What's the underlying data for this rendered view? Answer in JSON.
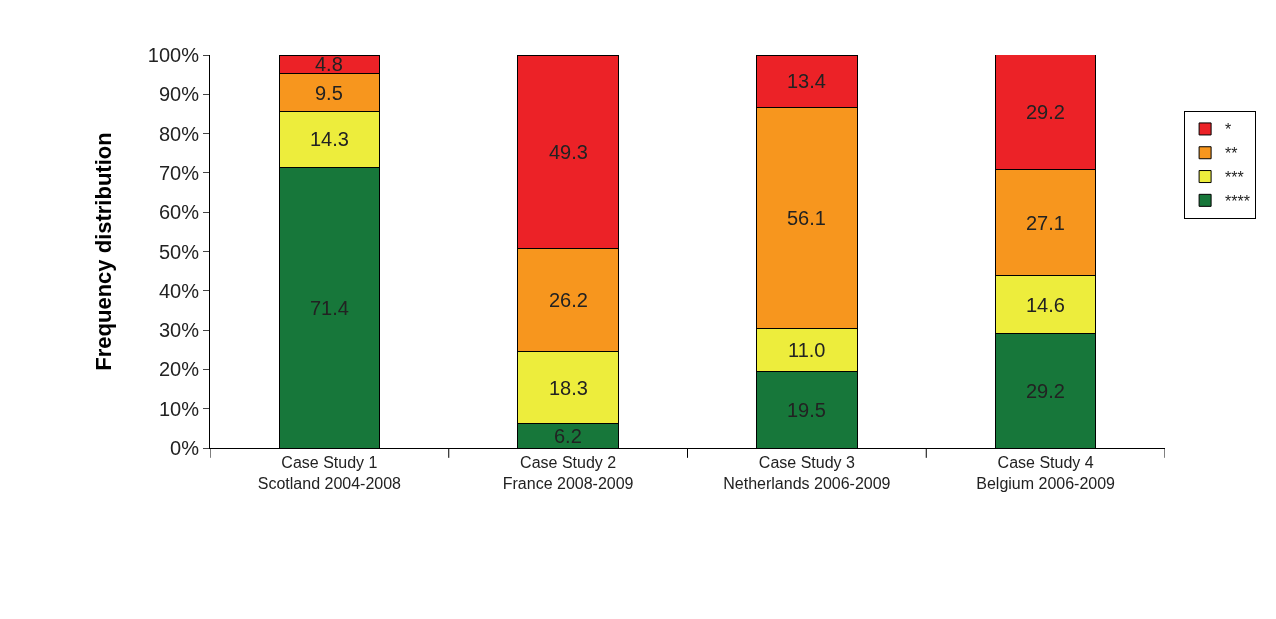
{
  "chart_data": {
    "type": "bar",
    "stacked": true,
    "ylabel": "Frequency distribution",
    "categories": [
      "Case Study 1\nScotland 2004-2008",
      "Case Study 2\nFrance 2008-2009",
      "Case Study 3\nNetherlands 2006-2009",
      "Case Study 4\nBelgium 2006-2009"
    ],
    "series": [
      {
        "name": "****",
        "color": "#17773a",
        "values": [
          71.4,
          6.2,
          19.5,
          29.2
        ],
        "value_labels": [
          "71.4",
          "6.2",
          "19.5",
          "29.2"
        ]
      },
      {
        "name": "***",
        "color": "#eded3c",
        "values": [
          14.3,
          18.3,
          11.0,
          14.6
        ],
        "value_labels": [
          "14.3",
          "18.3",
          "11.0",
          "14.6"
        ]
      },
      {
        "name": "**",
        "color": "#f7961e",
        "values": [
          9.5,
          26.2,
          56.1,
          27.1
        ],
        "value_labels": [
          "9.5",
          "26.2",
          "56.1",
          "27.1"
        ]
      },
      {
        "name": "*",
        "color": "#ec2227",
        "values": [
          4.8,
          49.3,
          13.4,
          29.2
        ],
        "value_labels": [
          "4.8",
          "49.3",
          "13.4",
          "29.2"
        ]
      }
    ],
    "ylim": [
      0,
      100
    ],
    "yticks": [
      {
        "value": 0,
        "label": "0%"
      },
      {
        "value": 10,
        "label": "10%"
      },
      {
        "value": 20,
        "label": "20%"
      },
      {
        "value": 30,
        "label": "30%"
      },
      {
        "value": 40,
        "label": "40%"
      },
      {
        "value": 50,
        "label": "50%"
      },
      {
        "value": 60,
        "label": "60%"
      },
      {
        "value": 70,
        "label": "70%"
      },
      {
        "value": 80,
        "label": "80%"
      },
      {
        "value": 90,
        "label": "90%"
      },
      {
        "value": 100,
        "label": "100%"
      }
    ],
    "legend": "right"
  }
}
